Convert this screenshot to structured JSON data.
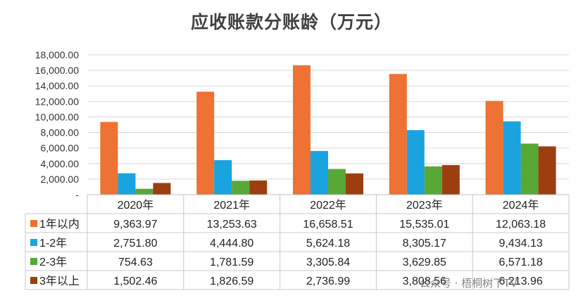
{
  "title": "应收账款分账龄（万元）",
  "watermark": "公众号 · 梧桐树下TV",
  "chart_data": {
    "type": "bar",
    "title": "应收账款分账龄（万元）",
    "categories": [
      "2020年",
      "2021年",
      "2022年",
      "2023年",
      "2024年"
    ],
    "series": [
      {
        "name": "1年以内",
        "color": "#ED7233",
        "values": [
          9363.97,
          13253.63,
          16658.51,
          15535.01,
          12063.18
        ],
        "labels": [
          "9,363.97",
          "13,253.63",
          "16,658.51",
          "15,535.01",
          "12,063.18"
        ]
      },
      {
        "name": "1-2年",
        "color": "#1AA3DE",
        "values": [
          2751.8,
          4444.8,
          5624.18,
          8305.17,
          9434.13
        ],
        "labels": [
          "2,751.80",
          "4,444.80",
          "5,624.18",
          "8,305.17",
          "9,434.13"
        ]
      },
      {
        "name": "2-3年",
        "color": "#58A836",
        "values": [
          754.63,
          1781.59,
          3305.84,
          3629.85,
          6571.18
        ],
        "labels": [
          "754.63",
          "1,781.59",
          "3,305.84",
          "3,629.85",
          "6,571.18"
        ]
      },
      {
        "name": "3年以上",
        "color": "#9C3E10",
        "values": [
          1502.46,
          1826.59,
          2736.99,
          3808.56,
          6213.96
        ],
        "labels": [
          "1,502.46",
          "1,826.59",
          "2,736.99",
          "3,808.56",
          "6,213.96"
        ]
      }
    ],
    "ylim": [
      0,
      18000
    ],
    "yticks": [
      0,
      2000,
      4000,
      6000,
      8000,
      10000,
      12000,
      14000,
      16000,
      18000
    ],
    "ytick_labels": [
      "-",
      "2,000.00",
      "4,000.00",
      "6,000.00",
      "8,000.00",
      "10,000.00",
      "12,000.00",
      "14,000.00",
      "16,000.00",
      "18,000.00"
    ],
    "grid": true,
    "legend": "data-table"
  }
}
